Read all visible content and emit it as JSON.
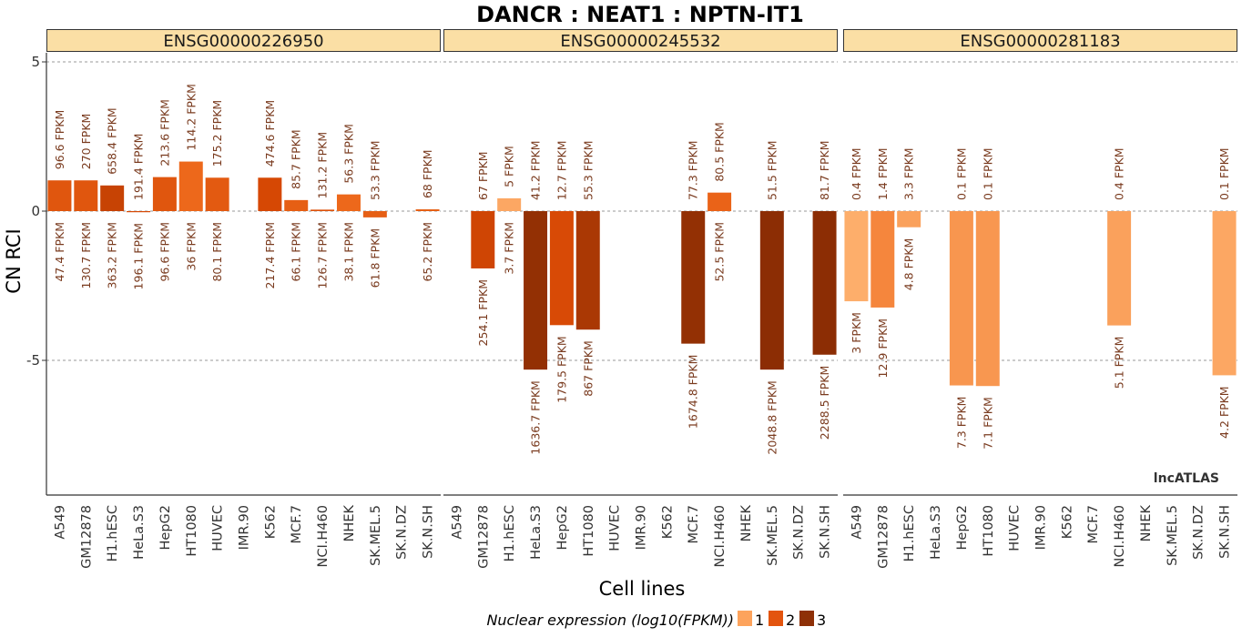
{
  "chart_data": {
    "type": "bar",
    "title": "DANCR : NEAT1 : NPTN-IT1",
    "xlabel": "Cell lines",
    "ylabel": "CN RCI",
    "ylim": [
      -9.4,
      5.2
    ],
    "yticks": [
      5,
      0,
      -5
    ],
    "watermark": "lncATLAS",
    "categories": [
      "A549",
      "GM12878",
      "H1.hESC",
      "HeLa.S3",
      "HepG2",
      "HT1080",
      "HUVEC",
      "IMR.90",
      "K562",
      "MCF.7",
      "NCI.H460",
      "NHEK",
      "SK.MEL.5",
      "SK.N.DZ",
      "SK.N.SH"
    ],
    "legend": {
      "title": "Nuclear expression (log10(FPKM))",
      "items": [
        {
          "label": "1",
          "color": "#fda35c"
        },
        {
          "label": "2",
          "color": "#e3540e"
        },
        {
          "label": "3",
          "color": "#8e3007"
        }
      ]
    },
    "panels": [
      {
        "gene": "ENSG00000226950",
        "bars": [
          {
            "cell": "A549",
            "value": 1.03,
            "cyto": "96.6 FPKM",
            "nuc": "47.4 FPKM",
            "level": 2
          },
          {
            "cell": "GM12878",
            "value": 1.03,
            "cyto": "270 FPKM",
            "nuc": "130.7 FPKM",
            "level": 2
          },
          {
            "cell": "H1.hESC",
            "value": 0.86,
            "cyto": "658.4 FPKM",
            "nuc": "363.2 FPKM",
            "level": 2.5
          },
          {
            "cell": "HeLa.S3",
            "value": -0.03,
            "cyto": "191.4 FPKM",
            "nuc": "196.1 FPKM",
            "level": 2.3
          },
          {
            "cell": "HepG2",
            "value": 1.14,
            "cyto": "213.6 FPKM",
            "nuc": "96.6 FPKM",
            "level": 2
          },
          {
            "cell": "HT1080",
            "value": 1.66,
            "cyto": "114.2 FPKM",
            "nuc": "36 FPKM",
            "level": 1.6
          },
          {
            "cell": "HUVEC",
            "value": 1.12,
            "cyto": "175.2 FPKM",
            "nuc": "80.1 FPKM",
            "level": 1.9
          },
          {
            "cell": "K562",
            "value": 1.12,
            "cyto": "474.6 FPKM",
            "nuc": "217.4 FPKM",
            "level": 2.3
          },
          {
            "cell": "MCF.7",
            "value": 0.37,
            "cyto": "85.7 FPKM",
            "nuc": "66.1 FPKM",
            "level": 1.8
          },
          {
            "cell": "NCI.H460",
            "value": 0.05,
            "cyto": "131.2 FPKM",
            "nuc": "126.7 FPKM",
            "level": 2.1
          },
          {
            "cell": "NHEK",
            "value": 0.56,
            "cyto": "56.3 FPKM",
            "nuc": "38.1 FPKM",
            "level": 1.6
          },
          {
            "cell": "SK.MEL.5",
            "value": -0.21,
            "cyto": "53.3 FPKM",
            "nuc": "61.8 FPKM",
            "level": 1.8
          },
          {
            "cell": "SK.N.SH",
            "value": 0.06,
            "cyto": "68 FPKM",
            "nuc": "65.2 FPKM",
            "level": 1.8
          }
        ]
      },
      {
        "gene": "ENSG00000245532",
        "bars": [
          {
            "cell": "GM12878",
            "value": -1.92,
            "cyto": "67 FPKM",
            "nuc": "254.1 FPKM",
            "level": 2.4
          },
          {
            "cell": "H1.hESC",
            "value": 0.43,
            "cyto": "5 FPKM",
            "nuc": "3.7 FPKM",
            "level": 0.6
          },
          {
            "cell": "HeLa.S3",
            "value": -5.31,
            "cyto": "41.2 FPKM",
            "nuc": "1636.7 FPKM",
            "level": 3.2
          },
          {
            "cell": "HepG2",
            "value": -3.82,
            "cyto": "12.7 FPKM",
            "nuc": "179.5 FPKM",
            "level": 2.25
          },
          {
            "cell": "HT1080",
            "value": -3.97,
            "cyto": "55.3 FPKM",
            "nuc": "867 FPKM",
            "level": 2.9
          },
          {
            "cell": "MCF.7",
            "value": -4.44,
            "cyto": "77.3 FPKM",
            "nuc": "1674.8 FPKM",
            "level": 3.2
          },
          {
            "cell": "NCI.H460",
            "value": 0.62,
            "cyto": "80.5 FPKM",
            "nuc": "52.5 FPKM",
            "level": 1.7
          },
          {
            "cell": "SK.MEL.5",
            "value": -5.31,
            "cyto": "51.5 FPKM",
            "nuc": "2048.8 FPKM",
            "level": 3.3
          },
          {
            "cell": "SK.N.SH",
            "value": -4.81,
            "cyto": "81.7 FPKM",
            "nuc": "2288.5 FPKM",
            "level": 3.35
          }
        ]
      },
      {
        "gene": "ENSG00000281183",
        "bars": [
          {
            "cell": "A549",
            "value": -3.02,
            "cyto": "0.4 FPKM",
            "nuc": "3 FPKM",
            "level": 0.5
          },
          {
            "cell": "GM12878",
            "value": -3.23,
            "cyto": "1.4 FPKM",
            "nuc": "12.9 FPKM",
            "level": 1.1
          },
          {
            "cell": "H1.hESC",
            "value": -0.54,
            "cyto": "3.3 FPKM",
            "nuc": "4.8 FPKM",
            "level": 0.7
          },
          {
            "cell": "HepG2",
            "value": -5.84,
            "cyto": "0.1 FPKM",
            "nuc": "7.3 FPKM",
            "level": 0.86
          },
          {
            "cell": "HT1080",
            "value": -5.86,
            "cyto": "0.1 FPKM",
            "nuc": "7.1 FPKM",
            "level": 0.85
          },
          {
            "cell": "NCI.H460",
            "value": -3.83,
            "cyto": "0.4 FPKM",
            "nuc": "5.1 FPKM",
            "level": 0.7
          },
          {
            "cell": "SK.N.SH",
            "value": -5.5,
            "cyto": "0.1 FPKM",
            "nuc": "4.2 FPKM",
            "level": 0.6
          }
        ]
      }
    ]
  }
}
